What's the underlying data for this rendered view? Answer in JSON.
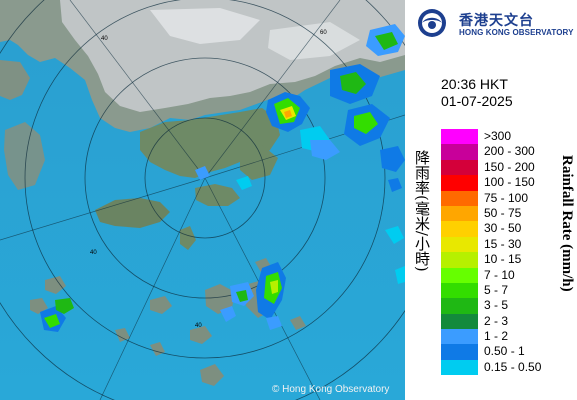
{
  "map": {
    "copyright": "© Hong Kong Observatory",
    "range_labels": [
      "40",
      "60",
      "40",
      "40"
    ]
  },
  "logo": {
    "name_cn": "香港天文台",
    "name_en": "HONG KONG OBSERVATORY"
  },
  "timestamp": {
    "time": "20:36 HKT",
    "date": "01-07-2025"
  },
  "legend": {
    "title_cn": "降雨率(毫米/小時)",
    "title_en": "Rainfall Rate (mm/h)",
    "items": [
      {
        "label": ">300",
        "color": "#ff00ff"
      },
      {
        "label": "200 - 300",
        "color": "#c8009a"
      },
      {
        "label": "150 - 200",
        "color": "#d4003a"
      },
      {
        "label": "100 - 150",
        "color": "#ff0000"
      },
      {
        "label": "75 - 100",
        "color": "#ff6a00"
      },
      {
        "label": "50 - 75",
        "color": "#ffa600"
      },
      {
        "label": "30 - 50",
        "color": "#ffd000"
      },
      {
        "label": "15 - 30",
        "color": "#e8e800"
      },
      {
        "label": "10 - 15",
        "color": "#b6f000"
      },
      {
        "label": "7 - 10",
        "color": "#66ff00"
      },
      {
        "label": "5 - 7",
        "color": "#33dd00"
      },
      {
        "label": "3 - 5",
        "color": "#1fb814"
      },
      {
        "label": "2 - 3",
        "color": "#138a3c"
      },
      {
        "label": "1 - 2",
        "color": "#3b9cff"
      },
      {
        "label": "0.50 - 1",
        "color": "#0f7ae6"
      },
      {
        "label": "0.15 - 0.50",
        "color": "#00ccf0"
      }
    ]
  }
}
